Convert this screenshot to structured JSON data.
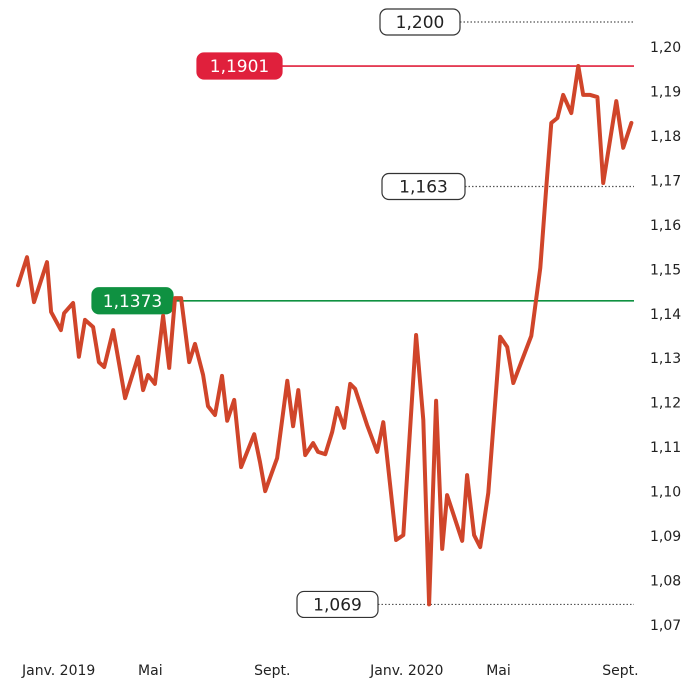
{
  "chart_data": {
    "type": "line",
    "x": [
      0,
      0.31,
      0.55,
      1.0,
      1.14,
      1.48,
      1.59,
      1.9,
      2.1,
      2.31,
      2.59,
      2.79,
      2.97,
      3.28,
      3.69,
      4.14,
      4.31,
      4.48,
      4.72,
      5.0,
      5.21,
      5.41,
      5.62,
      5.9,
      6.1,
      6.38,
      6.55,
      6.79,
      7.03,
      7.21,
      7.45,
      7.69,
      8.14,
      8.34,
      8.52,
      8.93,
      9.28,
      9.48,
      9.66,
      9.9,
      10.17,
      10.34,
      10.59,
      10.83,
      11.0,
      11.24,
      11.45,
      11.62,
      12.03,
      12.38,
      12.59,
      13.03,
      13.28,
      13.72,
      13.97,
      14.17,
      14.41,
      14.62,
      14.79,
      15.31,
      15.48,
      15.72,
      15.93,
      16.21,
      16.62,
      16.86,
      17.07,
      17.69,
      18.0,
      18.21,
      18.38,
      18.59,
      18.79,
      19.07,
      19.31,
      19.48,
      19.72,
      19.97,
      20.17,
      20.62,
      20.86,
      21.14
    ],
    "series": [
      {
        "color": "#d0452a",
        "values": [
          1.1408,
          1.1471,
          1.137,
          1.146,
          1.1348,
          1.1307,
          1.1345,
          1.1368,
          1.1247,
          1.133,
          1.1314,
          1.1235,
          1.1224,
          1.1307,
          1.1154,
          1.1247,
          1.1172,
          1.1206,
          1.1186,
          1.1339,
          1.1222,
          1.1379,
          1.1379,
          1.1235,
          1.1276,
          1.1206,
          1.1136,
          1.1116,
          1.1204,
          1.1103,
          1.115,
          1.0999,
          1.1073,
          1.101,
          1.0945,
          1.1019,
          1.1193,
          1.1091,
          1.1172,
          1.1026,
          1.1053,
          1.1033,
          1.1028,
          1.1078,
          1.1132,
          1.1087,
          1.1186,
          1.1175,
          1.1094,
          1.1033,
          1.11,
          1.0835,
          1.0846,
          1.1296,
          1.1105,
          1.069,
          1.1148,
          1.0815,
          1.0936,
          1.0833,
          1.0981,
          1.0846,
          1.0819,
          1.0941,
          1.1292,
          1.1269,
          1.1188,
          1.1294,
          1.1447,
          1.1629,
          1.1773,
          1.1784,
          1.1836,
          1.1795,
          1.1901,
          1.1836,
          1.1836,
          1.1831,
          1.1638,
          1.1822,
          1.1717,
          1.1773
        ]
      }
    ],
    "xlim": [
      0,
      21.3
    ],
    "xticks": [
      {
        "value": 0,
        "label": "Janv. 2019"
      },
      {
        "value": 4,
        "label": "Mai"
      },
      {
        "value": 8,
        "label": "Sept."
      },
      {
        "value": 12,
        "label": "Janv. 2020"
      },
      {
        "value": 16,
        "label": "Mai"
      },
      {
        "value": 20,
        "label": "Sept."
      }
    ],
    "ylim": [
      1.065,
      1.205
    ],
    "yticks": [
      {
        "value": 1.07,
        "label": "1,07"
      },
      {
        "value": 1.08,
        "label": "1,08"
      },
      {
        "value": 1.09,
        "label": "1,09"
      },
      {
        "value": 1.1,
        "label": "1,10"
      },
      {
        "value": 1.11,
        "label": "1,11"
      },
      {
        "value": 1.12,
        "label": "1,12"
      },
      {
        "value": 1.13,
        "label": "1,13"
      },
      {
        "value": 1.14,
        "label": "1,14"
      },
      {
        "value": 1.15,
        "label": "1,15"
      },
      {
        "value": 1.16,
        "label": "1,16"
      },
      {
        "value": 1.17,
        "label": "1,17"
      },
      {
        "value": 1.18,
        "label": "1,18"
      },
      {
        "value": 1.19,
        "label": "1,19"
      },
      {
        "value": 1.2,
        "label": "1,20"
      }
    ],
    "annotations": [
      {
        "value": 1.2,
        "label": "1,200",
        "color": "#555555",
        "style": "dotted"
      },
      {
        "value": 1.1901,
        "label": "1,1901",
        "color": "#e0203c",
        "style": "solid"
      },
      {
        "value": 1.163,
        "label": "1,163",
        "color": "#555555",
        "style": "dotted"
      },
      {
        "value": 1.1373,
        "label": "1,1373",
        "color": "#0f9141",
        "style": "solid"
      },
      {
        "value": 1.069,
        "label": "1,069",
        "color": "#555555",
        "style": "dotted"
      }
    ]
  }
}
